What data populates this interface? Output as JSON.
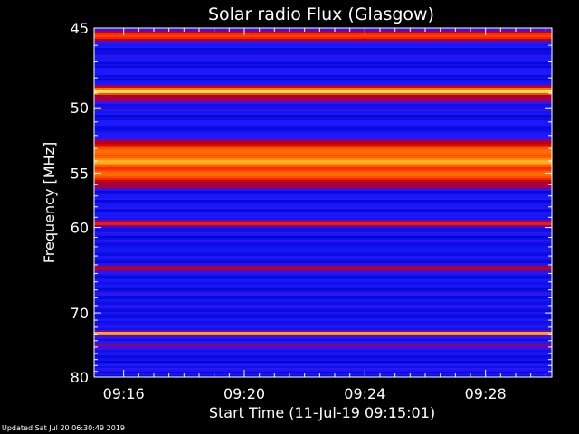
{
  "chart_data": {
    "type": "heatmap",
    "title": "Solar radio Flux (Glasgow)",
    "xlabel": "Start Time (11-Jul-19 09:15:01)",
    "ylabel": "Frequency [MHz]",
    "x_ticks": [
      "09:16",
      "09:20",
      "09:24",
      "09:28"
    ],
    "x_tick_minutes_after_0915": [
      1,
      5,
      9,
      13
    ],
    "x_range_minutes_after_0915": [
      0.02,
      15.2
    ],
    "y_ticks": [
      45,
      50,
      55,
      60,
      70,
      80
    ],
    "y_range_mhz": [
      45,
      80
    ],
    "y_scale": "reciprocal",
    "colormap": [
      "#0000c8",
      "#1a1aff",
      "#8000a0",
      "#c00000",
      "#ff3000",
      "#ff8000",
      "#ffff60"
    ],
    "intensity_profile_by_frequency_mhz": [
      {
        "mhz": 45.4,
        "level": 0.7
      },
      {
        "mhz": 48.8,
        "level": 1.0
      },
      {
        "mhz": 49.3,
        "level": 0.45
      },
      {
        "mhz": 52.5,
        "level": 0.5
      },
      {
        "mhz": 53.2,
        "level": 0.8
      },
      {
        "mhz": 54.0,
        "level": 0.9
      },
      {
        "mhz": 55.0,
        "level": 0.8
      },
      {
        "mhz": 56.0,
        "level": 0.5
      },
      {
        "mhz": 59.5,
        "level": 0.65
      },
      {
        "mhz": 64.3,
        "level": 0.55
      },
      {
        "mhz": 72.8,
        "level": 1.0
      },
      {
        "mhz": 74.6,
        "level": 0.4
      }
    ],
    "grid": false
  },
  "footer": "Updated Sat Jul 20 06:30:49 2019"
}
